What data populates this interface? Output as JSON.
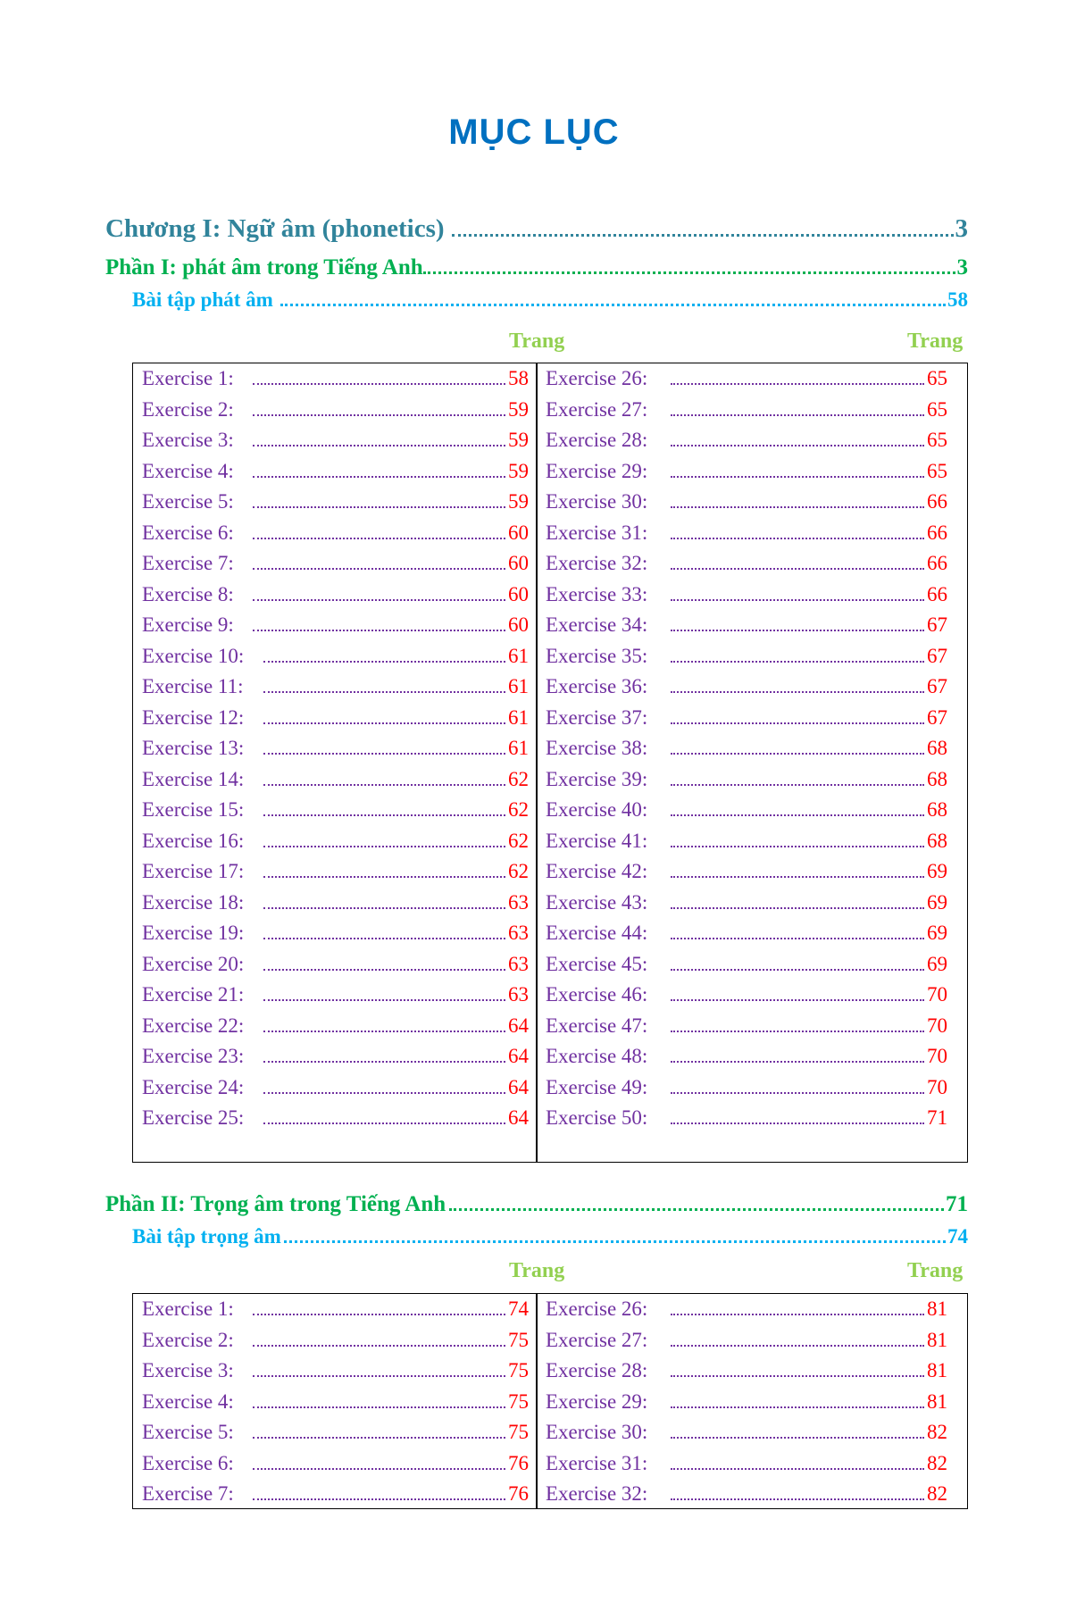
{
  "title": "MỤC LỤC",
  "colors": {
    "title": "#0070C0",
    "chapter": "#31849B",
    "part": "#00B050",
    "exercise_set": "#00B0F0",
    "trang": "#92D050",
    "exercise": "#7030A0",
    "page": "#FF0000"
  },
  "chapter": {
    "label": "Chương I: Ngữ âm (phonetics)",
    "page": "3"
  },
  "part1": {
    "label": "Phần I: phát âm trong Tiếng Anh",
    "page": "3"
  },
  "set1": {
    "label": "Bài tập phát âm",
    "page": "58"
  },
  "part2": {
    "label": "Phần II: Trọng âm trong Tiếng Anh",
    "page": "71"
  },
  "set2": {
    "label": "Bài tập trọng âm",
    "page": "74"
  },
  "trang_label": "Trang",
  "table1": {
    "left": [
      [
        "Exercise 1:",
        "58"
      ],
      [
        "Exercise 2:",
        "59"
      ],
      [
        "Exercise 3:",
        "59"
      ],
      [
        "Exercise 4:",
        "59"
      ],
      [
        "Exercise 5:",
        "59"
      ],
      [
        "Exercise 6:",
        "60"
      ],
      [
        "Exercise 7:",
        "60"
      ],
      [
        "Exercise 8:",
        "60"
      ],
      [
        "Exercise 9:",
        "60"
      ],
      [
        "Exercise 10:",
        "61"
      ],
      [
        "Exercise 11:",
        "61"
      ],
      [
        "Exercise 12:",
        "61"
      ],
      [
        "Exercise 13:",
        "61"
      ],
      [
        "Exercise 14:",
        "62"
      ],
      [
        "Exercise 15:",
        "62"
      ],
      [
        "Exercise 16:",
        "62"
      ],
      [
        "Exercise 17:",
        "62"
      ],
      [
        "Exercise 18:",
        "63"
      ],
      [
        "Exercise 19:",
        "63"
      ],
      [
        "Exercise 20:",
        "63"
      ],
      [
        "Exercise 21:",
        "63"
      ],
      [
        "Exercise 22:",
        "64"
      ],
      [
        "Exercise 23:",
        "64"
      ],
      [
        "Exercise 24:",
        "64"
      ],
      [
        "Exercise 25:",
        "64"
      ]
    ],
    "right": [
      [
        "Exercise 26:",
        "65"
      ],
      [
        "Exercise 27:",
        "65"
      ],
      [
        "Exercise 28:",
        "65"
      ],
      [
        "Exercise 29:",
        "65"
      ],
      [
        "Exercise 30:",
        "66"
      ],
      [
        "Exercise 31:",
        "66"
      ],
      [
        "Exercise 32:",
        "66"
      ],
      [
        "Exercise 33:",
        "66"
      ],
      [
        "Exercise 34:",
        "67"
      ],
      [
        "Exercise 35:",
        "67"
      ],
      [
        "Exercise 36:",
        "67"
      ],
      [
        "Exercise 37:",
        "67"
      ],
      [
        "Exercise 38:",
        "68"
      ],
      [
        "Exercise 39:",
        "68"
      ],
      [
        "Exercise 40:",
        "68"
      ],
      [
        "Exercise 41:",
        "68"
      ],
      [
        "Exercise 42:",
        "69"
      ],
      [
        "Exercise 43:",
        "69"
      ],
      [
        "Exercise 44:",
        "69"
      ],
      [
        "Exercise 45:",
        "69"
      ],
      [
        "Exercise 46:",
        "70"
      ],
      [
        "Exercise 47:",
        "70"
      ],
      [
        "Exercise 48:",
        "70"
      ],
      [
        "Exercise 49:",
        "70"
      ],
      [
        "Exercise 50:",
        "71"
      ]
    ]
  },
  "table2": {
    "left": [
      [
        "Exercise 1:",
        "74"
      ],
      [
        "Exercise 2:",
        "75"
      ],
      [
        "Exercise 3:",
        "75"
      ],
      [
        "Exercise 4:",
        "75"
      ],
      [
        "Exercise 5:",
        "75"
      ],
      [
        "Exercise 6:",
        "76"
      ],
      [
        "Exercise 7:",
        "76"
      ]
    ],
    "right": [
      [
        "Exercise 26:",
        "81"
      ],
      [
        "Exercise 27:",
        "81"
      ],
      [
        "Exercise 28:",
        "81"
      ],
      [
        "Exercise 29:",
        "81"
      ],
      [
        "Exercise 30:",
        "82"
      ],
      [
        "Exercise 31:",
        "82"
      ],
      [
        "Exercise 32:",
        "82"
      ]
    ]
  }
}
